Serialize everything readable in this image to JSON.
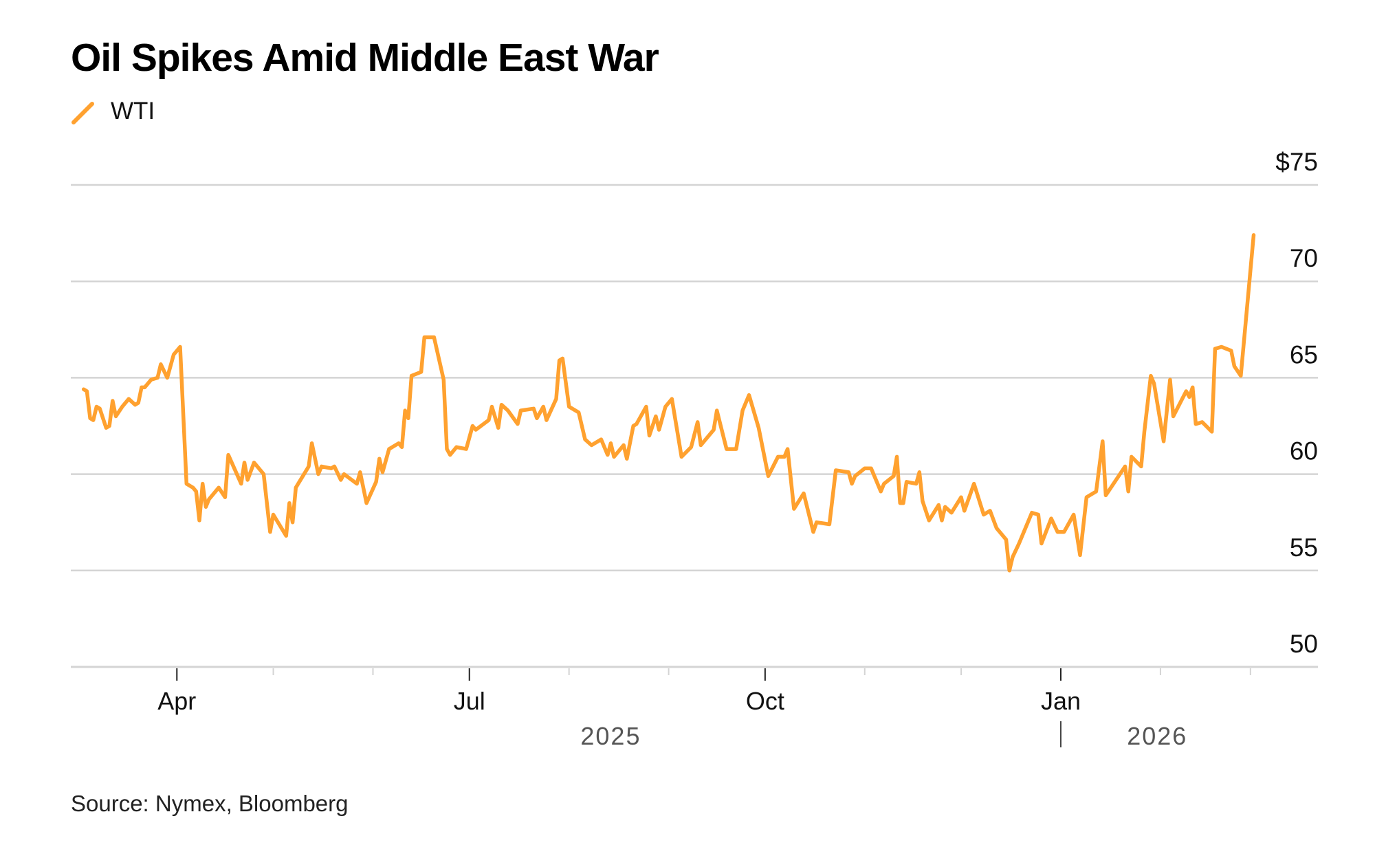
{
  "chart_data": {
    "type": "line",
    "title": "Oil Spikes Amid Middle East War",
    "source": "Source: Nymex, Bloomberg",
    "xlabel": "",
    "ylabel": "",
    "ylim": [
      50,
      75
    ],
    "xlim": [
      "2025-02-27",
      "2026-03-22"
    ],
    "grid": true,
    "legend_position": "top-left",
    "y_ticks": [
      {
        "value": 75,
        "label": "$75"
      },
      {
        "value": 70,
        "label": "70"
      },
      {
        "value": 65,
        "label": "65"
      },
      {
        "value": 60,
        "label": "60"
      },
      {
        "value": 55,
        "label": "55"
      },
      {
        "value": 50,
        "label": "50"
      }
    ],
    "x_major_ticks": [
      {
        "date": "2025-04-01",
        "label": "Apr"
      },
      {
        "date": "2025-07-01",
        "label": "Jul"
      },
      {
        "date": "2025-10-01",
        "label": "Oct"
      },
      {
        "date": "2026-01-01",
        "label": "Jan"
      }
    ],
    "x_minor_ticks": [
      "2025-05-01",
      "2025-06-01",
      "2025-08-01",
      "2025-09-01",
      "2025-11-01",
      "2025-12-01",
      "2026-02-01",
      "2026-03-01"
    ],
    "year_labels": [
      {
        "label": "2025",
        "center_date": "2025-08-14"
      },
      {
        "label": "2026",
        "center_date": "2026-01-31"
      }
    ],
    "year_divider_date": "2026-01-01",
    "series": [
      {
        "name": "WTI",
        "color": "#FFA12F",
        "points": [
          [
            "2025-03-03",
            64.4
          ],
          [
            "2025-03-04",
            64.3
          ],
          [
            "2025-03-05",
            62.9
          ],
          [
            "2025-03-06",
            62.8
          ],
          [
            "2025-03-07",
            63.5
          ],
          [
            "2025-03-08",
            63.4
          ],
          [
            "2025-03-10",
            62.4
          ],
          [
            "2025-03-11",
            62.5
          ],
          [
            "2025-03-12",
            63.8
          ],
          [
            "2025-03-13",
            63.0
          ],
          [
            "2025-03-15",
            63.5
          ],
          [
            "2025-03-17",
            63.9
          ],
          [
            "2025-03-19",
            63.6
          ],
          [
            "2025-03-20",
            63.7
          ],
          [
            "2025-03-21",
            64.5
          ],
          [
            "2025-03-22",
            64.5
          ],
          [
            "2025-03-24",
            64.9
          ],
          [
            "2025-03-26",
            65.0
          ],
          [
            "2025-03-27",
            65.7
          ],
          [
            "2025-03-29",
            65.0
          ],
          [
            "2025-03-31",
            66.2
          ],
          [
            "2025-04-02",
            66.6
          ],
          [
            "2025-04-04",
            59.5
          ],
          [
            "2025-04-06",
            59.3
          ],
          [
            "2025-04-07",
            59.1
          ],
          [
            "2025-04-08",
            57.6
          ],
          [
            "2025-04-09",
            59.5
          ],
          [
            "2025-04-10",
            58.3
          ],
          [
            "2025-04-11",
            58.7
          ],
          [
            "2025-04-14",
            59.3
          ],
          [
            "2025-04-16",
            58.8
          ],
          [
            "2025-04-17",
            61.0
          ],
          [
            "2025-04-21",
            59.5
          ],
          [
            "2025-04-22",
            60.6
          ],
          [
            "2025-04-23",
            59.7
          ],
          [
            "2025-04-25",
            60.6
          ],
          [
            "2025-04-28",
            60.0
          ],
          [
            "2025-04-30",
            57.0
          ],
          [
            "2025-05-01",
            57.9
          ],
          [
            "2025-05-05",
            56.8
          ],
          [
            "2025-05-06",
            58.5
          ],
          [
            "2025-05-07",
            57.5
          ],
          [
            "2025-05-08",
            59.3
          ],
          [
            "2025-05-12",
            60.4
          ],
          [
            "2025-05-13",
            61.6
          ],
          [
            "2025-05-15",
            60.0
          ],
          [
            "2025-05-16",
            60.4
          ],
          [
            "2025-05-19",
            60.3
          ],
          [
            "2025-05-20",
            60.4
          ],
          [
            "2025-05-22",
            59.7
          ],
          [
            "2025-05-23",
            60.0
          ],
          [
            "2025-05-27",
            59.5
          ],
          [
            "2025-05-28",
            60.1
          ],
          [
            "2025-05-30",
            58.5
          ],
          [
            "2025-06-02",
            59.6
          ],
          [
            "2025-06-03",
            60.8
          ],
          [
            "2025-06-04",
            60.1
          ],
          [
            "2025-06-06",
            61.3
          ],
          [
            "2025-06-09",
            61.6
          ],
          [
            "2025-06-10",
            61.4
          ],
          [
            "2025-06-11",
            63.3
          ],
          [
            "2025-06-12",
            62.9
          ],
          [
            "2025-06-13",
            65.1
          ],
          [
            "2025-06-16",
            65.3
          ],
          [
            "2025-06-17",
            67.1
          ],
          [
            "2025-06-20",
            67.1
          ],
          [
            "2025-06-23",
            64.9
          ],
          [
            "2025-06-24",
            61.3
          ],
          [
            "2025-06-25",
            61.0
          ],
          [
            "2025-06-27",
            61.4
          ],
          [
            "2025-06-30",
            61.3
          ],
          [
            "2025-07-02",
            62.5
          ],
          [
            "2025-07-03",
            62.3
          ],
          [
            "2025-07-07",
            62.8
          ],
          [
            "2025-07-08",
            63.5
          ],
          [
            "2025-07-10",
            62.4
          ],
          [
            "2025-07-11",
            63.6
          ],
          [
            "2025-07-13",
            63.3
          ],
          [
            "2025-07-16",
            62.6
          ],
          [
            "2025-07-17",
            63.3
          ],
          [
            "2025-07-21",
            63.4
          ],
          [
            "2025-07-22",
            62.9
          ],
          [
            "2025-07-24",
            63.5
          ],
          [
            "2025-07-25",
            62.8
          ],
          [
            "2025-07-28",
            63.9
          ],
          [
            "2025-07-29",
            65.9
          ],
          [
            "2025-07-30",
            66.0
          ],
          [
            "2025-08-01",
            63.5
          ],
          [
            "2025-08-04",
            63.2
          ],
          [
            "2025-08-06",
            61.8
          ],
          [
            "2025-08-08",
            61.5
          ],
          [
            "2025-08-11",
            61.8
          ],
          [
            "2025-08-13",
            61.0
          ],
          [
            "2025-08-14",
            61.6
          ],
          [
            "2025-08-15",
            60.9
          ],
          [
            "2025-08-18",
            61.5
          ],
          [
            "2025-08-19",
            60.8
          ],
          [
            "2025-08-21",
            62.5
          ],
          [
            "2025-08-22",
            62.6
          ],
          [
            "2025-08-25",
            63.5
          ],
          [
            "2025-08-26",
            62.0
          ],
          [
            "2025-08-28",
            63.0
          ],
          [
            "2025-08-29",
            62.3
          ],
          [
            "2025-08-31",
            63.5
          ],
          [
            "2025-09-02",
            63.9
          ],
          [
            "2025-09-05",
            60.9
          ],
          [
            "2025-09-08",
            61.4
          ],
          [
            "2025-09-10",
            62.7
          ],
          [
            "2025-09-11",
            61.5
          ],
          [
            "2025-09-15",
            62.3
          ],
          [
            "2025-09-16",
            63.3
          ],
          [
            "2025-09-19",
            61.3
          ],
          [
            "2025-09-22",
            61.3
          ],
          [
            "2025-09-24",
            63.3
          ],
          [
            "2025-09-26",
            64.1
          ],
          [
            "2025-09-29",
            62.4
          ],
          [
            "2025-10-02",
            59.9
          ],
          [
            "2025-10-05",
            60.9
          ],
          [
            "2025-10-07",
            60.9
          ],
          [
            "2025-10-08",
            61.3
          ],
          [
            "2025-10-10",
            58.2
          ],
          [
            "2025-10-13",
            59.0
          ],
          [
            "2025-10-16",
            57.0
          ],
          [
            "2025-10-17",
            57.5
          ],
          [
            "2025-10-21",
            57.4
          ],
          [
            "2025-10-23",
            60.2
          ],
          [
            "2025-10-27",
            60.1
          ],
          [
            "2025-10-28",
            59.5
          ],
          [
            "2025-10-29",
            59.9
          ],
          [
            "2025-11-01",
            60.3
          ],
          [
            "2025-11-03",
            60.3
          ],
          [
            "2025-11-06",
            59.1
          ],
          [
            "2025-11-07",
            59.5
          ],
          [
            "2025-11-10",
            59.9
          ],
          [
            "2025-11-11",
            60.9
          ],
          [
            "2025-11-12",
            58.5
          ],
          [
            "2025-11-13",
            58.5
          ],
          [
            "2025-11-14",
            59.6
          ],
          [
            "2025-11-17",
            59.5
          ],
          [
            "2025-11-18",
            60.1
          ],
          [
            "2025-11-19",
            58.6
          ],
          [
            "2025-11-21",
            57.6
          ],
          [
            "2025-11-24",
            58.4
          ],
          [
            "2025-11-25",
            57.6
          ],
          [
            "2025-11-26",
            58.3
          ],
          [
            "2025-11-28",
            58.0
          ],
          [
            "2025-12-01",
            58.8
          ],
          [
            "2025-12-02",
            58.1
          ],
          [
            "2025-12-05",
            59.5
          ],
          [
            "2025-12-08",
            57.9
          ],
          [
            "2025-12-10",
            58.1
          ],
          [
            "2025-12-12",
            57.2
          ],
          [
            "2025-12-15",
            56.6
          ],
          [
            "2025-12-16",
            55.0
          ],
          [
            "2025-12-17",
            55.7
          ],
          [
            "2025-12-19",
            56.4
          ],
          [
            "2025-12-23",
            58.0
          ],
          [
            "2025-12-25",
            57.9
          ],
          [
            "2025-12-26",
            56.4
          ],
          [
            "2025-12-29",
            57.7
          ],
          [
            "2025-12-31",
            57.0
          ],
          [
            "2026-01-02",
            57.0
          ],
          [
            "2026-01-05",
            57.9
          ],
          [
            "2026-01-07",
            55.8
          ],
          [
            "2026-01-09",
            58.8
          ],
          [
            "2026-01-12",
            59.1
          ],
          [
            "2026-01-14",
            61.7
          ],
          [
            "2026-01-15",
            58.9
          ],
          [
            "2026-01-21",
            60.4
          ],
          [
            "2026-01-22",
            59.1
          ],
          [
            "2026-01-23",
            60.9
          ],
          [
            "2026-01-26",
            60.4
          ],
          [
            "2026-01-27",
            62.2
          ],
          [
            "2026-01-29",
            65.1
          ],
          [
            "2026-01-30",
            64.7
          ],
          [
            "2026-02-02",
            61.7
          ],
          [
            "2026-02-04",
            64.9
          ],
          [
            "2026-02-05",
            63.0
          ],
          [
            "2026-02-09",
            64.3
          ],
          [
            "2026-02-10",
            64.0
          ],
          [
            "2026-02-11",
            64.5
          ],
          [
            "2026-02-12",
            62.6
          ],
          [
            "2026-02-14",
            62.7
          ],
          [
            "2026-02-17",
            62.2
          ],
          [
            "2026-02-18",
            66.5
          ],
          [
            "2026-02-20",
            66.6
          ],
          [
            "2026-02-23",
            66.4
          ],
          [
            "2026-02-24",
            65.6
          ],
          [
            "2026-02-26",
            65.1
          ],
          [
            "2026-03-02",
            72.4
          ]
        ]
      }
    ]
  },
  "legend": {
    "items": [
      {
        "label": "WTI",
        "color": "#FFA12F",
        "icon": "line-slash-icon"
      }
    ]
  },
  "colors": {
    "series": "#FFA12F",
    "grid": "#d4d4d4",
    "axis": "#d4d4d4",
    "text": "#111111",
    "year_text": "#555555"
  }
}
